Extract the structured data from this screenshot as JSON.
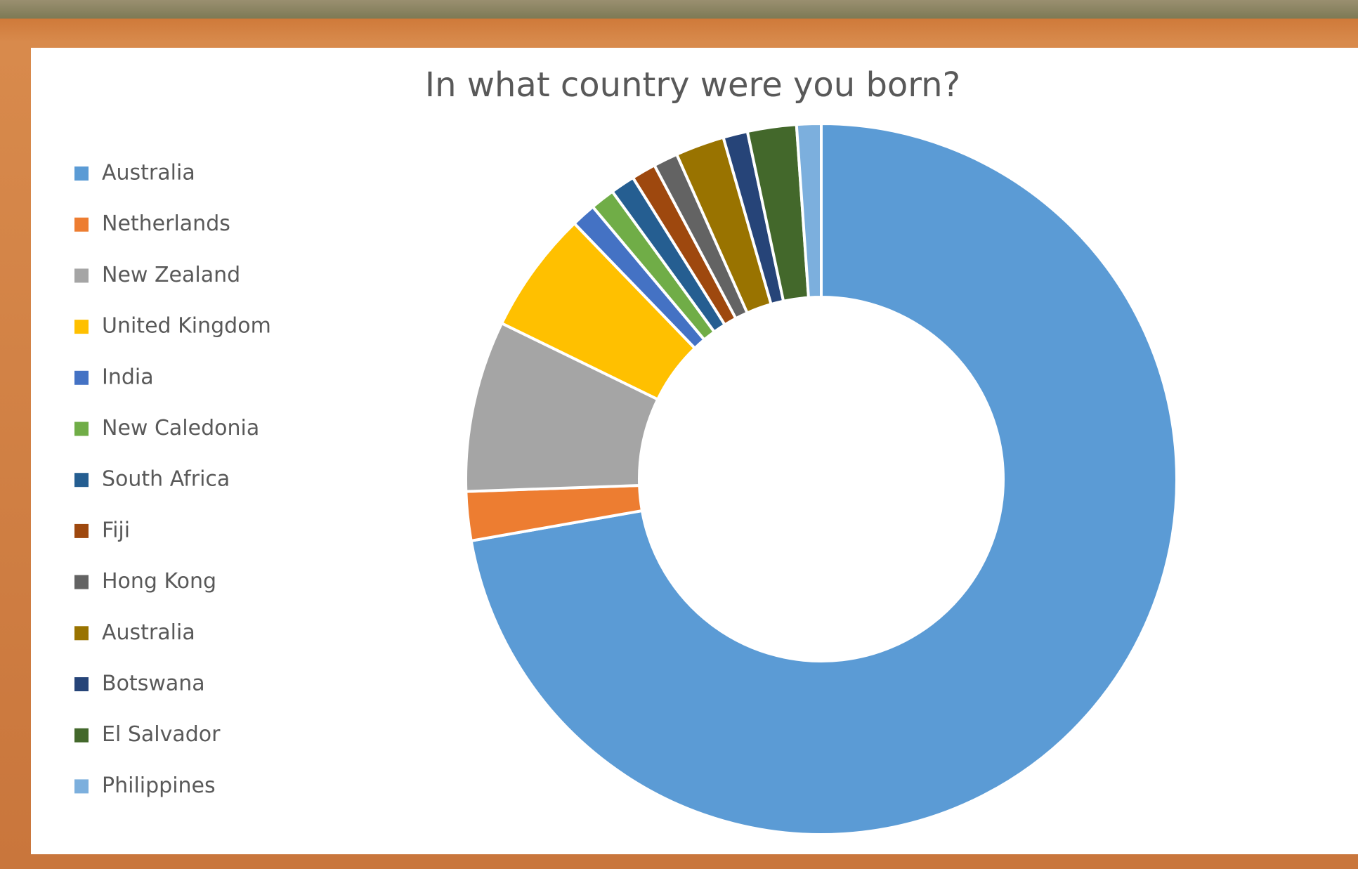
{
  "chart_data": {
    "type": "donut",
    "title": "In what country were you born?",
    "categories": [
      "Australia",
      "Netherlands",
      "New Zealand",
      "United Kingdom",
      "India",
      "New Caledonia",
      "South Africa",
      "Fiji",
      "Hong Kong",
      "Australia",
      "Botswana",
      "El Salvador",
      "Philippines"
    ],
    "values": [
      65,
      2,
      7,
      5,
      1,
      1,
      1,
      1,
      1,
      2,
      1,
      2,
      1
    ],
    "colors": [
      "#5b9bd5",
      "#ed7d31",
      "#a5a5a5",
      "#ffc000",
      "#4472c4",
      "#70ad47",
      "#255e91",
      "#9e480e",
      "#636363",
      "#997300",
      "#264478",
      "#43682b",
      "#7cafdd"
    ],
    "legend": "left"
  }
}
